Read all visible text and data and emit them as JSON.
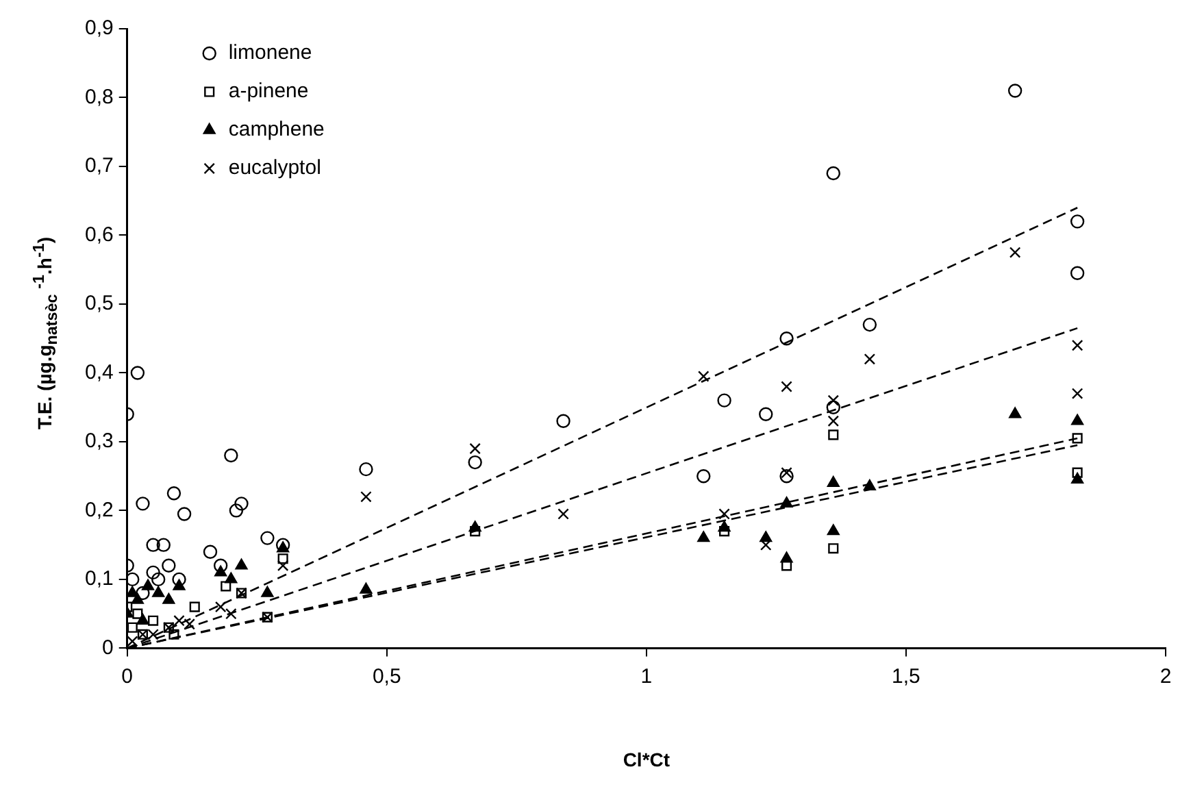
{
  "chart_data": {
    "type": "scatter",
    "xlabel": "Cl*Ct",
    "ylabel": "T.E. (µg.g$_{natsèc}$ $^{-1}$.h$^{-1}$)",
    "xlim": [
      0,
      2
    ],
    "xticks": [
      0,
      {
        "value": 0.5,
        "label": "0,5"
      },
      1,
      {
        "value": 1.5,
        "label": "1,5"
      },
      2
    ],
    "ylim": [
      0,
      0.9
    ],
    "yticks": [
      0,
      {
        "value": 0.1,
        "label": "0,1"
      },
      {
        "value": 0.2,
        "label": "0,2"
      },
      {
        "value": 0.3,
        "label": "0,3"
      },
      {
        "value": 0.4,
        "label": "0,4"
      },
      {
        "value": 0.5,
        "label": "0,5"
      },
      {
        "value": 0.6,
        "label": "0,6"
      },
      {
        "value": 0.7,
        "label": "0,7"
      },
      {
        "value": 0.8,
        "label": "0,8"
      },
      {
        "value": 0.9,
        "label": "0,9"
      }
    ],
    "grid": false,
    "legend": "top left",
    "series": [
      {
        "name": "limonene",
        "color": "#000000",
        "marker": "circle",
        "x": [
          0,
          0.02,
          0.03,
          0.05,
          0.07,
          0.09,
          0.11,
          0.16,
          0.2,
          0.21,
          0.22,
          0.27,
          0.3,
          0.46,
          0.67,
          0.84,
          1.11,
          1.15,
          1.23,
          1.27,
          1.27,
          1.36,
          1.36,
          1.43,
          1.71,
          1.83,
          1.83,
          0,
          0.01,
          0.03,
          0.05,
          0.06,
          0.08,
          0.1,
          0.18
        ],
        "values": [
          0.34,
          0.4,
          0.21,
          0.15,
          0.15,
          0.225,
          0.195,
          0.14,
          0.28,
          0.2,
          0.21,
          0.16,
          0.15,
          0.26,
          0.27,
          0.33,
          0.25,
          0.36,
          0.34,
          0.45,
          0.25,
          0.69,
          0.35,
          0.47,
          0.81,
          0.62,
          0.545,
          0.12,
          0.1,
          0.08,
          0.11,
          0.1,
          0.12,
          0.1,
          0.12
        ]
      },
      {
        "name": "a-pinene",
        "color": "#000000",
        "marker": "square",
        "x": [
          0,
          0.01,
          0.02,
          0.05,
          0.08,
          0.13,
          0.19,
          0.22,
          0.27,
          0.3,
          0.67,
          1.15,
          1.27,
          1.36,
          1.36,
          1.83,
          1.83,
          0.03,
          0.09
        ],
        "values": [
          0.06,
          0.03,
          0.05,
          0.04,
          0.03,
          0.06,
          0.09,
          0.08,
          0.045,
          0.13,
          0.17,
          0.17,
          0.12,
          0.31,
          0.145,
          0.305,
          0.255,
          0.02,
          0.02
        ]
      },
      {
        "name": "camphene",
        "color": "#000000",
        "marker": "triangle",
        "x": [
          0,
          0.01,
          0.02,
          0.04,
          0.06,
          0.08,
          0.1,
          0.18,
          0.2,
          0.22,
          0.27,
          0.3,
          0.46,
          0.67,
          1.11,
          1.15,
          1.23,
          1.27,
          1.27,
          1.36,
          1.36,
          1.43,
          1.71,
          1.83,
          1.83,
          0.03
        ],
        "values": [
          0.05,
          0.08,
          0.07,
          0.09,
          0.08,
          0.07,
          0.09,
          0.11,
          0.1,
          0.12,
          0.08,
          0.145,
          0.085,
          0.175,
          0.16,
          0.175,
          0.16,
          0.21,
          0.13,
          0.24,
          0.17,
          0.235,
          0.34,
          0.33,
          0.245,
          0.04
        ]
      },
      {
        "name": "eucalyptol",
        "color": "#000000",
        "marker": "cross",
        "x": [
          0.01,
          0.03,
          0.05,
          0.08,
          0.1,
          0.18,
          0.2,
          0.22,
          0.27,
          0.3,
          0.46,
          0.67,
          0.84,
          1.11,
          1.15,
          1.23,
          1.27,
          1.27,
          1.36,
          1.36,
          1.43,
          1.71,
          1.83,
          1.83,
          0.12
        ],
        "values": [
          0.01,
          0.02,
          0.02,
          0.03,
          0.04,
          0.06,
          0.05,
          0.08,
          0.045,
          0.12,
          0.22,
          0.29,
          0.195,
          0.395,
          0.195,
          0.15,
          0.38,
          0.255,
          0.36,
          0.33,
          0.42,
          0.575,
          0.44,
          0.37,
          0.035
        ]
      },
      {
        "type": "line",
        "color": "#000000",
        "marker": "none",
        "line_style": "dashed",
        "x": [
          0,
          1.83
        ],
        "values": [
          0,
          0.64
        ]
      },
      {
        "type": "line",
        "color": "#000000",
        "marker": "none",
        "line_style": "dashed",
        "x": [
          0,
          1.83
        ],
        "values": [
          0,
          0.465
        ]
      },
      {
        "type": "line",
        "color": "#000000",
        "marker": "none",
        "line_style": "dashed",
        "x": [
          0,
          1.83
        ],
        "values": [
          0,
          0.305
        ]
      },
      {
        "type": "line",
        "color": "#000000",
        "marker": "none",
        "line_style": "dashed",
        "x": [
          0,
          1.83
        ],
        "values": [
          0,
          0.295
        ]
      }
    ]
  }
}
